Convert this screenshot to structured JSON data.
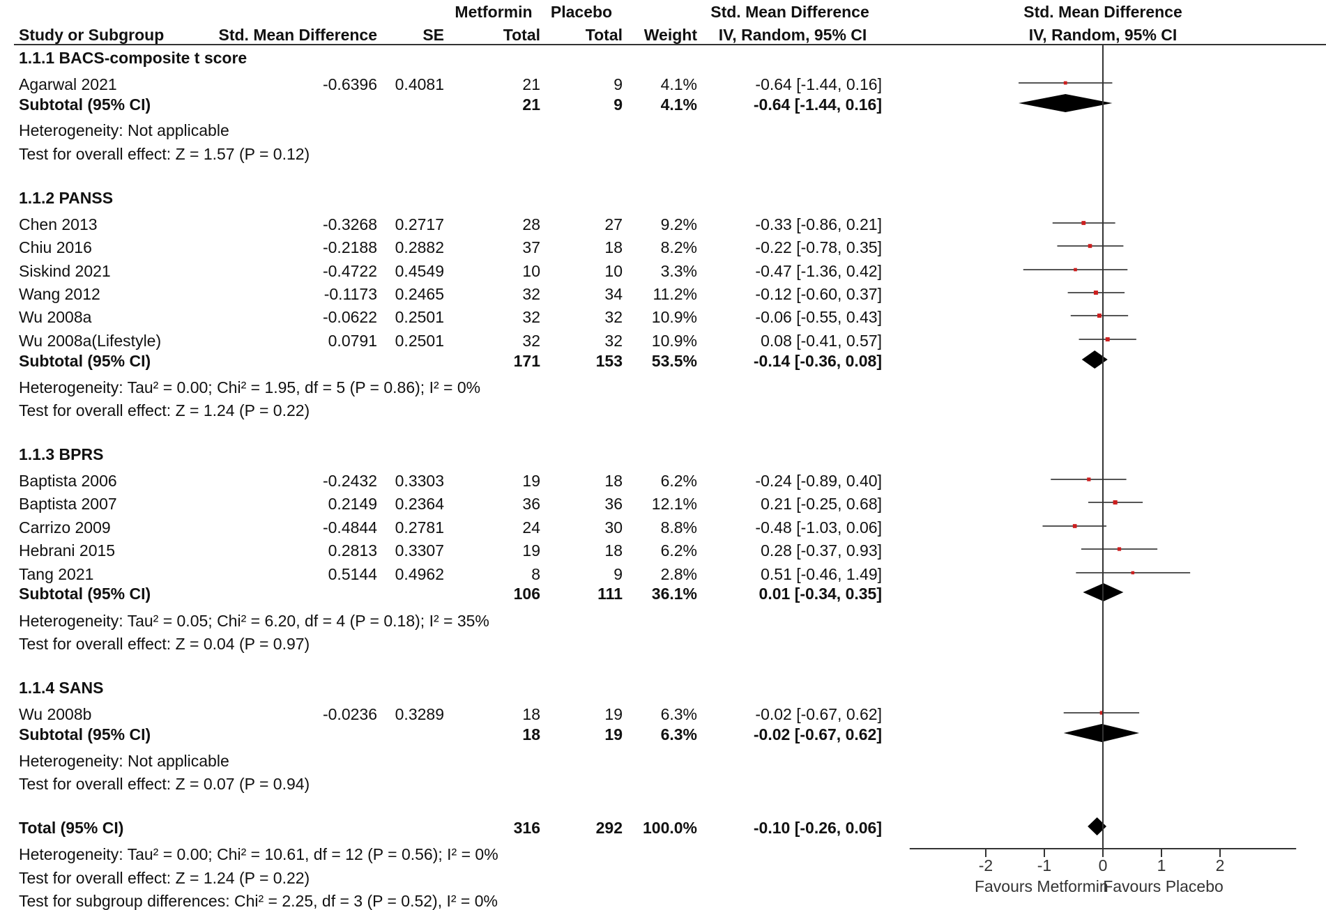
{
  "chart_data": {
    "type": "forest",
    "header": {
      "group1": "Metformin",
      "group2": "Placebo",
      "smd_top": "Std. Mean Difference",
      "smd_method": "IV, Random, 95% CI",
      "plot_top": "Std. Mean Difference",
      "plot_method": "IV, Random, 95% CI",
      "col_study": "Study or Subgroup",
      "col_smd": "Std. Mean Difference",
      "col_se": "SE",
      "col_total1": "Total",
      "col_total2": "Total",
      "col_weight": "Weight"
    },
    "subgroups": [
      {
        "title": "1.1.1 BACS-composite t score",
        "studies": [
          {
            "name": "Agarwal 2021",
            "smd": "-0.6396",
            "se": "0.4081",
            "n1": "21",
            "n2": "9",
            "weight": "4.1%",
            "ci_text": "-0.64 [-1.44, 0.16]",
            "est": -0.64,
            "lo": -1.44,
            "hi": 0.16
          }
        ],
        "subtotal": {
          "label": "Subtotal (95% CI)",
          "n1": "21",
          "n2": "9",
          "weight": "4.1%",
          "ci_text": "-0.64 [-1.44, 0.16]",
          "est": -0.64,
          "lo": -1.44,
          "hi": 0.16
        },
        "heterogeneity": "Heterogeneity: Not applicable",
        "overall": "Test for overall effect: Z = 1.57 (P = 0.12)"
      },
      {
        "title": "1.1.2 PANSS",
        "studies": [
          {
            "name": "Chen 2013",
            "smd": "-0.3268",
            "se": "0.2717",
            "n1": "28",
            "n2": "27",
            "weight": "9.2%",
            "ci_text": "-0.33 [-0.86, 0.21]",
            "est": -0.33,
            "lo": -0.86,
            "hi": 0.21
          },
          {
            "name": "Chiu 2016",
            "smd": "-0.2188",
            "se": "0.2882",
            "n1": "37",
            "n2": "18",
            "weight": "8.2%",
            "ci_text": "-0.22 [-0.78, 0.35]",
            "est": -0.22,
            "lo": -0.78,
            "hi": 0.35
          },
          {
            "name": "Siskind 2021",
            "smd": "-0.4722",
            "se": "0.4549",
            "n1": "10",
            "n2": "10",
            "weight": "3.3%",
            "ci_text": "-0.47 [-1.36, 0.42]",
            "est": -0.47,
            "lo": -1.36,
            "hi": 0.42
          },
          {
            "name": "Wang 2012",
            "smd": "-0.1173",
            "se": "0.2465",
            "n1": "32",
            "n2": "34",
            "weight": "11.2%",
            "ci_text": "-0.12 [-0.60, 0.37]",
            "est": -0.12,
            "lo": -0.6,
            "hi": 0.37
          },
          {
            "name": "Wu 2008a",
            "smd": "-0.0622",
            "se": "0.2501",
            "n1": "32",
            "n2": "32",
            "weight": "10.9%",
            "ci_text": "-0.06 [-0.55, 0.43]",
            "est": -0.06,
            "lo": -0.55,
            "hi": 0.43
          },
          {
            "name": "Wu 2008a(Lifestyle)",
            "smd": "0.0791",
            "se": "0.2501",
            "n1": "32",
            "n2": "32",
            "weight": "10.9%",
            "ci_text": "0.08 [-0.41, 0.57]",
            "est": 0.08,
            "lo": -0.41,
            "hi": 0.57
          }
        ],
        "subtotal": {
          "label": "Subtotal (95% CI)",
          "n1": "171",
          "n2": "153",
          "weight": "53.5%",
          "ci_text": "-0.14 [-0.36, 0.08]",
          "est": -0.14,
          "lo": -0.36,
          "hi": 0.08
        },
        "heterogeneity": "Heterogeneity: Tau² = 0.00; Chi² = 1.95, df = 5 (P = 0.86); I² = 0%",
        "overall": "Test for overall effect: Z = 1.24 (P = 0.22)"
      },
      {
        "title": "1.1.3 BPRS",
        "studies": [
          {
            "name": "Baptista 2006",
            "smd": "-0.2432",
            "se": "0.3303",
            "n1": "19",
            "n2": "18",
            "weight": "6.2%",
            "ci_text": "-0.24 [-0.89, 0.40]",
            "est": -0.24,
            "lo": -0.89,
            "hi": 0.4
          },
          {
            "name": "Baptista 2007",
            "smd": "0.2149",
            "se": "0.2364",
            "n1": "36",
            "n2": "36",
            "weight": "12.1%",
            "ci_text": "0.21 [-0.25, 0.68]",
            "est": 0.21,
            "lo": -0.25,
            "hi": 0.68
          },
          {
            "name": "Carrizo 2009",
            "smd": "-0.4844",
            "se": "0.2781",
            "n1": "24",
            "n2": "30",
            "weight": "8.8%",
            "ci_text": "-0.48 [-1.03, 0.06]",
            "est": -0.48,
            "lo": -1.03,
            "hi": 0.06
          },
          {
            "name": "Hebrani 2015",
            "smd": "0.2813",
            "se": "0.3307",
            "n1": "19",
            "n2": "18",
            "weight": "6.2%",
            "ci_text": "0.28 [-0.37, 0.93]",
            "est": 0.28,
            "lo": -0.37,
            "hi": 0.93
          },
          {
            "name": "Tang 2021",
            "smd": "0.5144",
            "se": "0.4962",
            "n1": "8",
            "n2": "9",
            "weight": "2.8%",
            "ci_text": "0.51 [-0.46, 1.49]",
            "est": 0.51,
            "lo": -0.46,
            "hi": 1.49
          }
        ],
        "subtotal": {
          "label": "Subtotal (95% CI)",
          "n1": "106",
          "n2": "111",
          "weight": "36.1%",
          "ci_text": "0.01 [-0.34, 0.35]",
          "est": 0.01,
          "lo": -0.34,
          "hi": 0.35
        },
        "heterogeneity": "Heterogeneity: Tau² = 0.05; Chi² = 6.20, df = 4 (P = 0.18); I² = 35%",
        "overall": "Test for overall effect: Z = 0.04 (P = 0.97)"
      },
      {
        "title": "1.1.4 SANS",
        "studies": [
          {
            "name": "Wu 2008b",
            "smd": "-0.0236",
            "se": "0.3289",
            "n1": "18",
            "n2": "19",
            "weight": "6.3%",
            "ci_text": "-0.02 [-0.67, 0.62]",
            "est": -0.02,
            "lo": -0.67,
            "hi": 0.62
          }
        ],
        "subtotal": {
          "label": "Subtotal (95% CI)",
          "n1": "18",
          "n2": "19",
          "weight": "6.3%",
          "ci_text": "-0.02 [-0.67, 0.62]",
          "est": -0.02,
          "lo": -0.67,
          "hi": 0.62
        },
        "heterogeneity": "Heterogeneity: Not applicable",
        "overall": "Test for overall effect: Z = 0.07 (P = 0.94)"
      }
    ],
    "total": {
      "label": "Total (95% CI)",
      "n1": "316",
      "n2": "292",
      "weight": "100.0%",
      "ci_text": "-0.10 [-0.26, 0.06]",
      "est": -0.1,
      "lo": -0.26,
      "hi": 0.06
    },
    "total_heterogeneity": "Heterogeneity: Tau² = 0.00; Chi² = 10.61, df = 12 (P = 0.56); I² = 0%",
    "total_overall": "Test for overall effect: Z = 1.24 (P = 0.22)",
    "subgroup_diff": "Test for subgroup differences: Chi² = 2.25, df = 3 (P = 0.52), I² = 0%",
    "axis": {
      "xlim": [
        -3.3,
        3.3
      ],
      "ticks": [
        "-2",
        "-1",
        "0",
        "1",
        "2"
      ],
      "tick_values": [
        -2,
        -1,
        0,
        1,
        2
      ],
      "favours_left": "Favours Metformin",
      "favours_right": "Favours Placebo"
    },
    "colors": {
      "study_marker": "#cc1f1f",
      "diamond": "#000000",
      "line": "#555555",
      "axis": "#333333"
    }
  }
}
